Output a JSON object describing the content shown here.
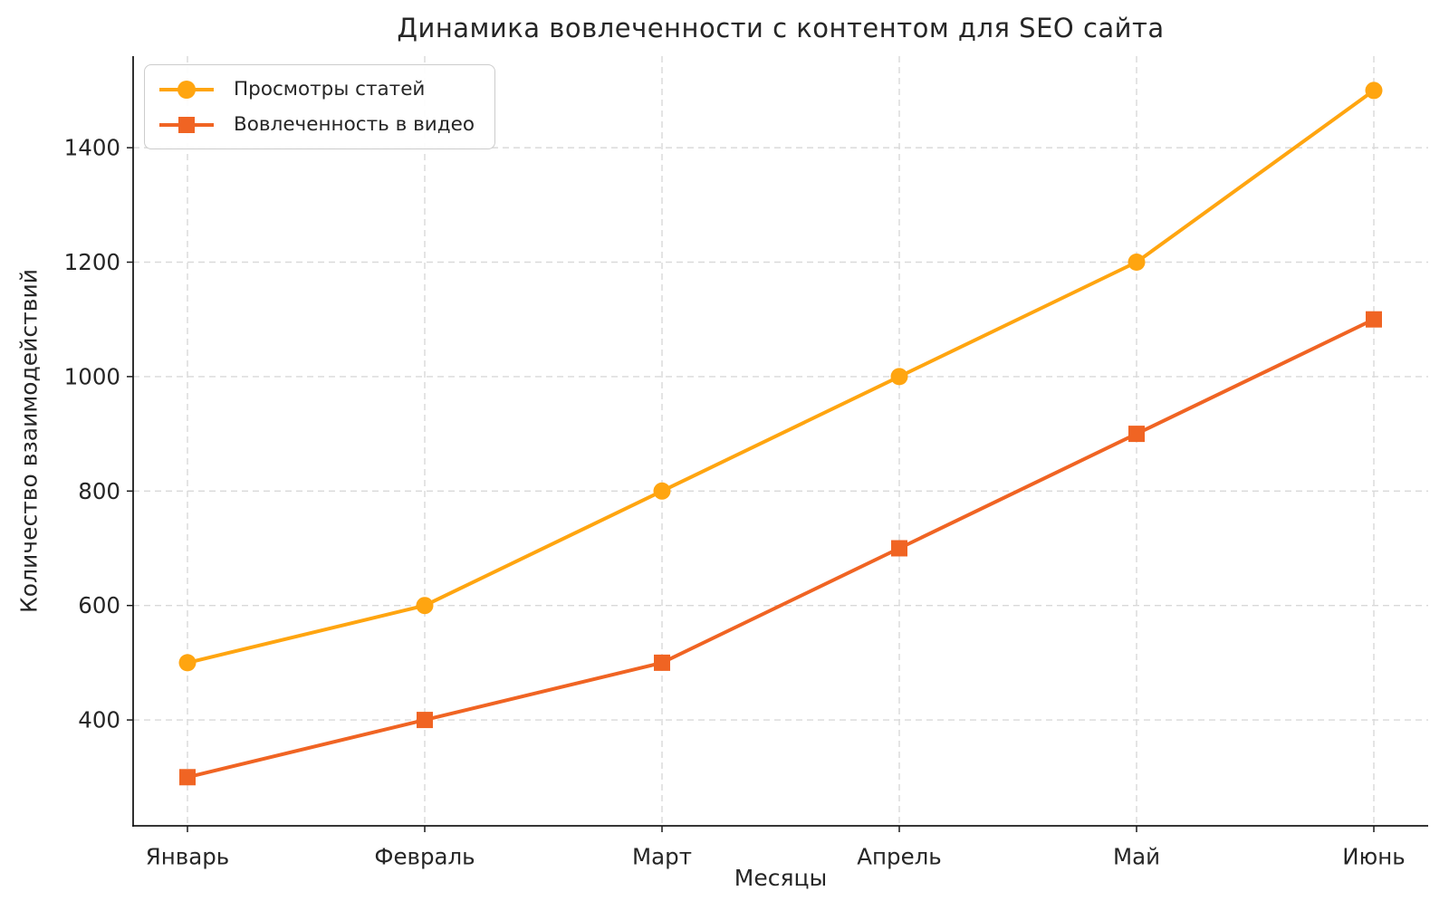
{
  "chart_data": {
    "type": "line",
    "title": "Динамика вовлеченности с контентом для SEO сайта",
    "xlabel": "Месяцы",
    "ylabel": "Количество взаимодействий",
    "categories": [
      "Январь",
      "Февраль",
      "Март",
      "Апрель",
      "Май",
      "Июнь"
    ],
    "series": [
      {
        "name": "Просмотры статей",
        "values": [
          500,
          600,
          800,
          1000,
          1200,
          1500
        ],
        "color": "#FFA510",
        "marker": "circle"
      },
      {
        "name": "Вовлеченность в видео",
        "values": [
          300,
          400,
          500,
          700,
          900,
          1100
        ],
        "color": "#F06423",
        "marker": "square"
      }
    ],
    "yticks": [
      400,
      600,
      800,
      1000,
      1200,
      1400
    ],
    "ylim": [
      215,
      1560
    ],
    "grid": "dashed-both-axes",
    "legend_position": "top-left",
    "colors": {
      "grid": "#d9d9d9",
      "axis": "#1a1a1a",
      "text": "#262626",
      "background": "#ffffff",
      "legend_border": "#cccccc"
    }
  }
}
